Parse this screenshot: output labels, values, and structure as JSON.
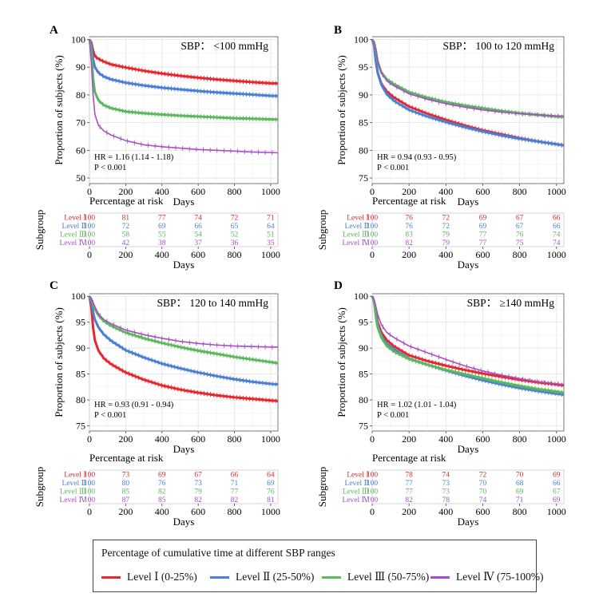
{
  "colors": {
    "I": "#e8262d",
    "II": "#4a7fd4",
    "III": "#5cb85c",
    "IV": "#a64fc4"
  },
  "legend": {
    "title": "Percentage of cumulative time at different SBP ranges",
    "items": [
      {
        "key": "I",
        "label": "Level Ⅰ (0-25%)"
      },
      {
        "key": "II",
        "label": "Level Ⅱ (25-50%)"
      },
      {
        "key": "III",
        "label": "Level Ⅲ (50-75%)"
      },
      {
        "key": "IV",
        "label": "Level Ⅳ (75-100%)"
      }
    ]
  },
  "chart_data": [
    {
      "type": "line",
      "panel_label": "A",
      "annotation": "SBP： <100 mmHg",
      "hr_text": "HR = 1.16 (1.14 - 1.18)",
      "p_text": "P < 0.001",
      "xlabel": "Days",
      "ylabel": "Proportion of subjects (%)",
      "xlim": [
        0,
        1040
      ],
      "ylim": [
        48,
        101
      ],
      "xticks": [
        0,
        200,
        400,
        600,
        800,
        1000
      ],
      "yticks": [
        50,
        60,
        70,
        80,
        90,
        100
      ],
      "grid": true,
      "series": [
        {
          "key": "I",
          "x": [
            0,
            10,
            20,
            30,
            50,
            80,
            120,
            200,
            300,
            400,
            500,
            600,
            700,
            800,
            900,
            1000,
            1040
          ],
          "y": [
            100,
            99,
            96,
            94,
            93,
            92,
            91,
            89.9,
            88.7,
            87.7,
            86.9,
            86.2,
            85.6,
            85.1,
            84.6,
            84.2,
            84.1
          ]
        },
        {
          "key": "II",
          "x": [
            0,
            10,
            20,
            30,
            50,
            80,
            120,
            200,
            300,
            400,
            500,
            600,
            700,
            800,
            900,
            1000,
            1040
          ],
          "y": [
            100,
            98,
            93,
            90,
            88,
            86.6,
            85.6,
            84.4,
            83.4,
            82.6,
            82,
            81.4,
            80.9,
            80.5,
            80.1,
            79.7,
            79.6
          ]
        },
        {
          "key": "III",
          "x": [
            0,
            10,
            20,
            30,
            50,
            80,
            120,
            200,
            300,
            400,
            500,
            600,
            700,
            800,
            900,
            1000,
            1040
          ],
          "y": [
            100,
            96,
            86,
            81,
            78,
            76.3,
            75.2,
            74,
            73.4,
            72.9,
            72.5,
            72.2,
            71.9,
            71.6,
            71.4,
            71.2,
            71.1
          ]
        },
        {
          "key": "IV",
          "x": [
            0,
            10,
            20,
            30,
            50,
            80,
            120,
            200,
            300,
            400,
            500,
            600,
            700,
            800,
            900,
            1000,
            1040
          ],
          "y": [
            100,
            92,
            80,
            73,
            69,
            67,
            65.5,
            63.5,
            62,
            61.3,
            60.8,
            60.3,
            60,
            59.7,
            59.4,
            59.2,
            59.1
          ]
        }
      ],
      "risk_table": {
        "title": "Percentage at risk",
        "row_axis_label": "Subgroup",
        "xlabel": "Days",
        "row_labels": [
          "Level Ⅰ",
          "Level Ⅱ",
          "Level Ⅲ",
          "Level Ⅳ"
        ],
        "x": [
          0,
          200,
          400,
          600,
          800,
          1000
        ],
        "rows": [
          {
            "key": "I",
            "values": [
              "100",
              "81",
              "77",
              "74",
              "72",
              "71"
            ]
          },
          {
            "key": "II",
            "values": [
              "100",
              "72",
              "69",
              "66",
              "65",
              "64"
            ]
          },
          {
            "key": "III",
            "values": [
              "100",
              "58",
              "55",
              "54",
              "52",
              "51"
            ]
          },
          {
            "key": "IV",
            "values": [
              "100",
              "42",
              "38",
              "37",
              "36",
              "35"
            ]
          }
        ]
      }
    },
    {
      "type": "line",
      "panel_label": "B",
      "annotation": "SBP： 100 to 120 mmHg",
      "hr_text": "HR = 0.94 (0.93 - 0.95)",
      "p_text": "P < 0.001",
      "xlabel": "Days",
      "ylabel": "Proportion of subjects (%)",
      "xlim": [
        0,
        1040
      ],
      "ylim": [
        74,
        100.5
      ],
      "xticks": [
        0,
        200,
        400,
        600,
        800,
        1000
      ],
      "yticks": [
        75,
        80,
        85,
        90,
        95,
        100
      ],
      "grid": true,
      "series": [
        {
          "key": "I",
          "x": [
            0,
            10,
            20,
            30,
            50,
            80,
            120,
            200,
            300,
            400,
            500,
            600,
            700,
            800,
            900,
            1000,
            1040
          ],
          "y": [
            100,
            99,
            96,
            94,
            92,
            90.6,
            89.5,
            87.9,
            86.6,
            85.5,
            84.5,
            83.6,
            82.9,
            82.2,
            81.6,
            81.1,
            80.9
          ]
        },
        {
          "key": "II",
          "x": [
            0,
            10,
            20,
            30,
            50,
            80,
            120,
            200,
            300,
            400,
            500,
            600,
            700,
            800,
            900,
            1000,
            1040
          ],
          "y": [
            100,
            99,
            96,
            94,
            91.8,
            90.1,
            88.9,
            87.3,
            86.1,
            85.1,
            84.2,
            83.4,
            82.7,
            82.1,
            81.6,
            81.1,
            80.9
          ]
        },
        {
          "key": "III",
          "x": [
            0,
            10,
            20,
            30,
            50,
            80,
            120,
            200,
            300,
            400,
            500,
            600,
            700,
            800,
            900,
            1000,
            1040
          ],
          "y": [
            100,
            99.5,
            98,
            96,
            94,
            92.8,
            91.9,
            90.5,
            89.5,
            88.7,
            88.1,
            87.6,
            87.1,
            86.7,
            86.4,
            86.1,
            86
          ]
        },
        {
          "key": "IV",
          "x": [
            0,
            10,
            20,
            30,
            50,
            80,
            120,
            200,
            300,
            400,
            500,
            600,
            700,
            800,
            900,
            1000,
            1040
          ],
          "y": [
            100,
            99.5,
            98,
            96,
            94,
            92.5,
            91.6,
            90.2,
            89.2,
            88.4,
            87.8,
            87.3,
            86.9,
            86.6,
            86.4,
            86.2,
            86.2
          ]
        }
      ],
      "risk_table": {
        "title": "Percentage at risk",
        "row_axis_label": "Subgroup",
        "xlabel": "Days",
        "row_labels": [
          "Level Ⅰ",
          "Level Ⅱ",
          "Level Ⅲ",
          "Level Ⅳ"
        ],
        "x": [
          0,
          200,
          400,
          600,
          800,
          1000
        ],
        "rows": [
          {
            "key": "I",
            "values": [
              "100",
              "76",
              "72",
              "69",
              "67",
              "66"
            ]
          },
          {
            "key": "II",
            "values": [
              "100",
              "76",
              "72",
              "69",
              "67",
              "66"
            ]
          },
          {
            "key": "III",
            "values": [
              "100",
              "83",
              "79",
              "77",
              "76",
              "74"
            ]
          },
          {
            "key": "IV",
            "values": [
              "100",
              "82",
              "79",
              "77",
              "75",
              "74"
            ]
          }
        ]
      }
    },
    {
      "type": "line",
      "panel_label": "C",
      "annotation": "SBP： 120 to 140 mmHg",
      "hr_text": "HR = 0.93 (0.91 - 0.94)",
      "p_text": "P < 0.001",
      "xlabel": "Days",
      "ylabel": "Proportion of subjects (%)",
      "xlim": [
        0,
        1040
      ],
      "ylim": [
        74,
        100.5
      ],
      "xticks": [
        0,
        200,
        400,
        600,
        800,
        1000
      ],
      "yticks": [
        75,
        80,
        85,
        90,
        95,
        100
      ],
      "grid": true,
      "series": [
        {
          "key": "I",
          "x": [
            0,
            10,
            20,
            30,
            50,
            80,
            120,
            200,
            300,
            400,
            500,
            600,
            700,
            800,
            900,
            1000,
            1040
          ],
          "y": [
            100,
            98,
            94,
            91.5,
            89.5,
            88,
            86.9,
            85.3,
            83.9,
            82.8,
            82,
            81.4,
            80.9,
            80.5,
            80.2,
            79.9,
            79.8
          ]
        },
        {
          "key": "II",
          "x": [
            0,
            10,
            20,
            30,
            50,
            80,
            120,
            200,
            300,
            400,
            500,
            600,
            700,
            800,
            900,
            1000,
            1040
          ],
          "y": [
            100,
            99,
            97,
            95.5,
            94,
            92.6,
            91.4,
            89.6,
            88.2,
            87,
            86.1,
            85.3,
            84.6,
            84,
            83.5,
            83.1,
            83
          ]
        },
        {
          "key": "III",
          "x": [
            0,
            10,
            20,
            30,
            50,
            80,
            120,
            200,
            300,
            400,
            500,
            600,
            700,
            800,
            900,
            1000,
            1040
          ],
          "y": [
            100,
            99.5,
            98.5,
            97.5,
            96.3,
            95.2,
            94.3,
            93,
            91.9,
            91,
            90.2,
            89.5,
            88.9,
            88.3,
            87.8,
            87.3,
            87.1
          ]
        },
        {
          "key": "IV",
          "x": [
            0,
            10,
            20,
            30,
            50,
            80,
            120,
            200,
            300,
            400,
            500,
            600,
            700,
            800,
            900,
            1000,
            1040
          ],
          "y": [
            100,
            99.5,
            98.8,
            98,
            96.6,
            95.5,
            94.7,
            93.5,
            92.6,
            91.9,
            91.3,
            90.9,
            90.6,
            90.4,
            90.3,
            90.2,
            90.2
          ]
        }
      ],
      "risk_table": {
        "title": "Percentage at risk",
        "row_axis_label": "Subgroup",
        "xlabel": "Days",
        "row_labels": [
          "Level Ⅰ",
          "Level Ⅱ",
          "Level Ⅲ",
          "Level Ⅳ"
        ],
        "x": [
          0,
          200,
          400,
          600,
          800,
          1000
        ],
        "rows": [
          {
            "key": "I",
            "values": [
              "100",
              "73",
              "69",
              "67",
              "66",
              "64"
            ]
          },
          {
            "key": "II",
            "values": [
              "100",
              "80",
              "76",
              "73",
              "71",
              "69"
            ]
          },
          {
            "key": "III",
            "values": [
              "100",
              "85",
              "82",
              "79",
              "77",
              "76"
            ]
          },
          {
            "key": "IV",
            "values": [
              "100",
              "87",
              "85",
              "82",
              "82",
              "81"
            ]
          }
        ]
      }
    },
    {
      "type": "line",
      "panel_label": "D",
      "annotation": "SBP： ≥140 mmHg",
      "hr_text": "HR = 1.02 (1.01 - 1.04)",
      "p_text": "P < 0.001",
      "xlabel": "Days",
      "ylabel": "Proportion of subjects (%)",
      "xlim": [
        0,
        1040
      ],
      "ylim": [
        74,
        100.5
      ],
      "xticks": [
        0,
        200,
        400,
        600,
        800,
        1000
      ],
      "yticks": [
        75,
        80,
        85,
        90,
        95,
        100
      ],
      "grid": true,
      "series": [
        {
          "key": "I",
          "x": [
            0,
            10,
            20,
            30,
            50,
            80,
            120,
            200,
            300,
            400,
            500,
            600,
            700,
            800,
            900,
            1000,
            1040
          ],
          "y": [
            100,
            99,
            97,
            95,
            93,
            91.5,
            90.3,
            88.6,
            87.5,
            86.6,
            85.8,
            85.1,
            84.5,
            83.9,
            83.4,
            83,
            82.8
          ]
        },
        {
          "key": "II",
          "x": [
            0,
            10,
            20,
            30,
            50,
            80,
            120,
            200,
            300,
            400,
            500,
            600,
            700,
            800,
            900,
            1000,
            1040
          ],
          "y": [
            100,
            99,
            96.5,
            94.5,
            92.4,
            90.8,
            89.7,
            88,
            86.8,
            85.7,
            84.7,
            83.8,
            83,
            82.3,
            81.7,
            81.2,
            81
          ]
        },
        {
          "key": "III",
          "x": [
            0,
            10,
            20,
            30,
            50,
            80,
            120,
            200,
            300,
            400,
            500,
            600,
            700,
            800,
            900,
            1000,
            1040
          ],
          "y": [
            100,
            99,
            96,
            94,
            92,
            90.4,
            89.3,
            87.9,
            86.8,
            85.8,
            85,
            84.2,
            83.4,
            82.7,
            82.1,
            81.6,
            81.4
          ]
        },
        {
          "key": "IV",
          "x": [
            0,
            10,
            20,
            30,
            50,
            80,
            120,
            200,
            300,
            400,
            500,
            600,
            700,
            800,
            900,
            1000,
            1040
          ],
          "y": [
            100,
            99.5,
            98,
            96.5,
            94.5,
            93,
            92,
            90.4,
            89.1,
            87.8,
            86.6,
            85.6,
            84.8,
            84.1,
            83.5,
            83.1,
            83
          ]
        }
      ],
      "risk_table": {
        "title": "Percentage at risk",
        "row_axis_label": "Subgroup",
        "xlabel": "Days",
        "row_labels": [
          "Level Ⅰ",
          "Level Ⅱ",
          "Level Ⅲ",
          "Level Ⅳ"
        ],
        "x": [
          0,
          200,
          400,
          600,
          800,
          1000
        ],
        "rows": [
          {
            "key": "I",
            "values": [
              "100",
              "78",
              "74",
              "72",
              "70",
              "69"
            ]
          },
          {
            "key": "II",
            "values": [
              "100",
              "77",
              "73",
              "70",
              "68",
              "66"
            ]
          },
          {
            "key": "III",
            "values": [
              "100",
              "77",
              "73",
              "70",
              "69",
              "67"
            ]
          },
          {
            "key": "IV",
            "values": [
              "100",
              "82",
              "78",
              "74",
              "71",
              "69"
            ]
          }
        ]
      }
    }
  ]
}
